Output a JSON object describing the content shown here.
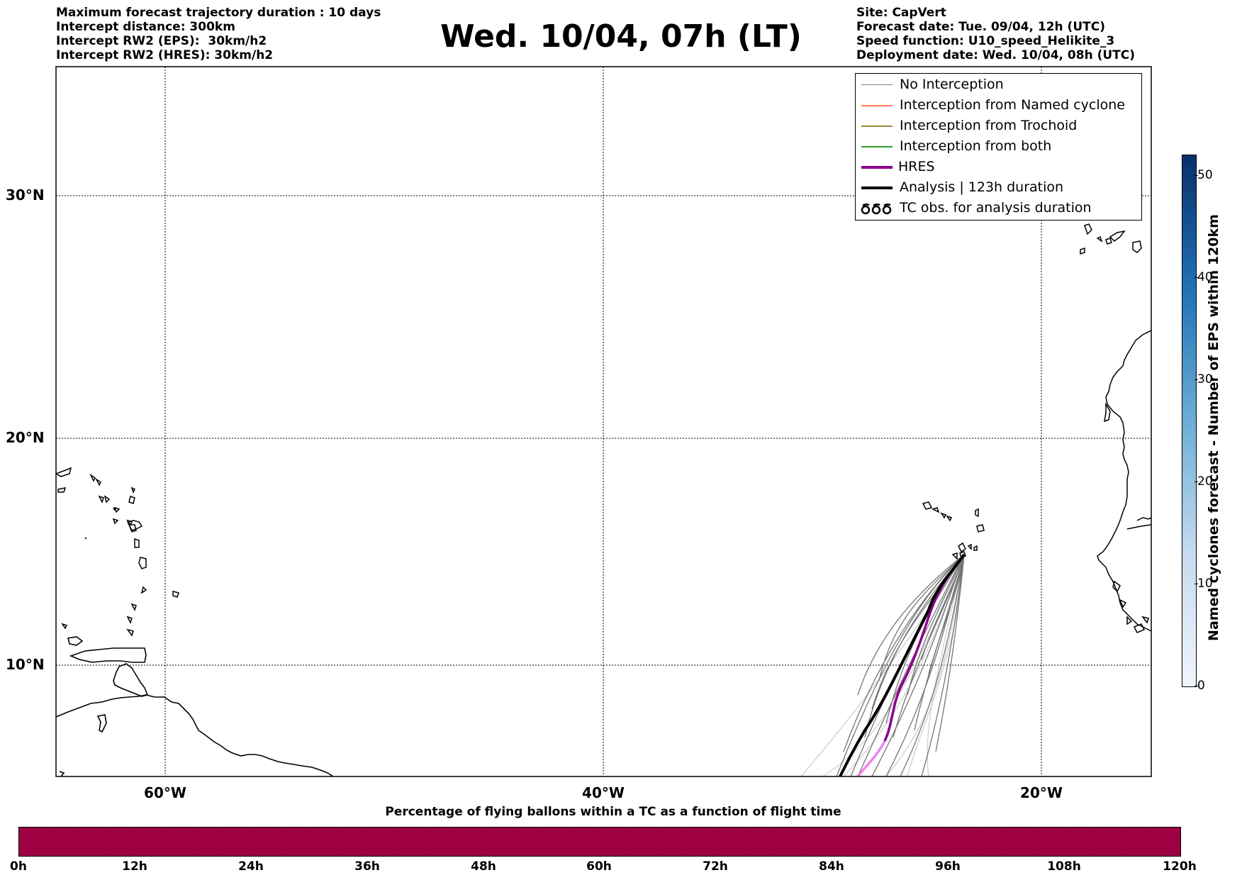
{
  "header": {
    "left_lines": [
      "Maximum forecast trajectory duration : 10 days",
      "Intercept distance: 300km",
      "Intercept RW2 (EPS):  30km/h2",
      "Intercept RW2 (HRES): 30km/h2"
    ],
    "right_lines": [
      "Site: CapVert",
      "Forecast date: Tue. 09/04, 12h (UTC)",
      "Speed function: U10_speed_Helikite_3",
      "Deployment date: Wed. 10/04, 08h (UTC)"
    ],
    "title": "Wed. 10/04, 07h (LT)"
  },
  "map": {
    "lat_labels": [
      "30°N",
      "20°N",
      "10°N"
    ],
    "lon_labels": [
      "60°W",
      "40°W",
      "20°W"
    ],
    "grid": "dotted",
    "launch_site_approx": {
      "lat": 14.9,
      "lon": -23.5
    }
  },
  "legend": {
    "items": [
      {
        "label": "No Interception",
        "color": "#808080"
      },
      {
        "label": "Interception from Named cyclone",
        "color": "#ff7f50"
      },
      {
        "label": "Interception from Trochoid",
        "color": "#9b8a3a"
      },
      {
        "label": "Interception from both",
        "color": "#2ca02c"
      },
      {
        "label": "HRES",
        "color": "#8b008b"
      },
      {
        "label": "Analysis | 123h duration",
        "color": "#000000"
      },
      {
        "label": "TC obs. for analysis duration",
        "color": "#000000",
        "icon": "tc-symbol-icon"
      }
    ]
  },
  "colorbar_vertical": {
    "label": "Named cyclones forecast - Number of EPS within 120km",
    "ticks": [
      "0",
      "10",
      "20",
      "30",
      "40",
      "50"
    ],
    "range": [
      0,
      52
    ],
    "colormap": "Blues"
  },
  "colorbar_horizontal": {
    "title": "Percentage of flying ballons within a TC as a function of flight time",
    "ticks": [
      "0h",
      "12h",
      "24h",
      "36h",
      "48h",
      "60h",
      "72h",
      "84h",
      "96h",
      "108h",
      "120h"
    ],
    "fill_color": "#9e0142"
  }
}
